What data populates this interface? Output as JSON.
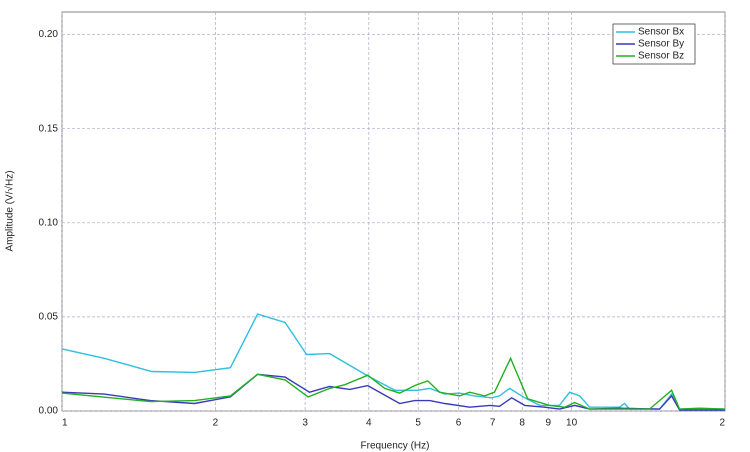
{
  "chart_data": {
    "type": "line",
    "xlabel": "Frequency (Hz)",
    "ylabel": "Amplitude (V/√Hz)",
    "xscale": "log",
    "xlim": [
      1,
      20
    ],
    "xticks": [
      1,
      2,
      3,
      4,
      5,
      6,
      7,
      8,
      9,
      10,
      {
        "value": 20,
        "label": "2"
      }
    ],
    "ylim": [
      0,
      0.212
    ],
    "yticks": [
      {
        "value": 0,
        "label": "0.00"
      },
      {
        "value": 0.05,
        "label": "0.05"
      },
      {
        "value": 0.1,
        "label": "0.10"
      },
      {
        "value": 0.15,
        "label": "0.15"
      },
      {
        "value": 0.2,
        "label": "0.20"
      }
    ],
    "grid": true,
    "legend": "upper right",
    "series": [
      {
        "name": "Sensor Bx",
        "color": "#2fbfdf",
        "x": [
          1,
          1.21,
          1.5,
          1.82,
          2.14,
          2.42,
          2.74,
          3.02,
          3.35,
          4.02,
          4.5,
          4.99,
          5.27,
          5.64,
          6.03,
          6.45,
          6.97,
          7.22,
          7.56,
          8.09,
          8.66,
          9.47,
          9.91,
          10.37,
          10.85,
          12.42,
          12.7,
          12.99,
          14.88,
          15.71,
          16.29,
          17.82,
          20
        ],
        "values": [
          0.033,
          0.028,
          0.021,
          0.0205,
          0.023,
          0.0515,
          0.047,
          0.03,
          0.0305,
          0.018,
          0.011,
          0.011,
          0.012,
          0.009,
          0.0095,
          0.008,
          0.007,
          0.008,
          0.012,
          0.007,
          0.003,
          0.003,
          0.01,
          0.008,
          0.002,
          0.002,
          0.004,
          0.001,
          0.001,
          0.009,
          0.001,
          0.001,
          0.001
        ]
      },
      {
        "name": "Sensor By",
        "color": "#3a3ab8",
        "x": [
          1,
          1.21,
          1.49,
          1.82,
          2.14,
          2.42,
          2.74,
          3.06,
          3.35,
          3.67,
          3.98,
          4.6,
          4.92,
          5.27,
          5.64,
          6.31,
          6.91,
          7.22,
          7.63,
          8.09,
          8.85,
          9.47,
          10.14,
          10.85,
          12.42,
          14.88,
          15.71,
          16.29,
          20
        ],
        "values": [
          0.01,
          0.009,
          0.0055,
          0.004,
          0.0075,
          0.0195,
          0.018,
          0.01,
          0.013,
          0.0115,
          0.0135,
          0.004,
          0.0055,
          0.0055,
          0.004,
          0.002,
          0.003,
          0.0025,
          0.007,
          0.003,
          0.002,
          0.001,
          0.003,
          0.001,
          0.0015,
          0.001,
          0.008,
          0.0005,
          0.0005
        ]
      },
      {
        "name": "Sensor Bz",
        "color": "#22b022",
        "x": [
          1,
          1.49,
          1.82,
          2.14,
          2.42,
          2.74,
          3.04,
          3.35,
          3.59,
          3.98,
          4.3,
          4.6,
          4.92,
          5.22,
          5.51,
          6.03,
          6.31,
          6.75,
          7.06,
          7.59,
          8.2,
          9.06,
          9.69,
          10.14,
          10.85,
          12.42,
          14.22,
          15.71,
          16.29,
          17.82,
          20
        ],
        "values": [
          0.0095,
          0.005,
          0.0055,
          0.008,
          0.0195,
          0.0165,
          0.0075,
          0.012,
          0.014,
          0.019,
          0.012,
          0.0095,
          0.0135,
          0.016,
          0.01,
          0.008,
          0.01,
          0.008,
          0.01,
          0.028,
          0.0065,
          0.003,
          0.002,
          0.0045,
          0.001,
          0.001,
          0.001,
          0.011,
          0.001,
          0.0015,
          0.001
        ]
      }
    ]
  }
}
